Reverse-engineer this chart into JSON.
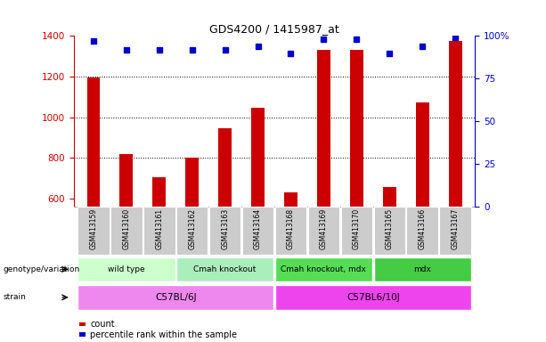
{
  "title": "GDS4200 / 1415987_at",
  "samples": [
    "GSM413159",
    "GSM413160",
    "GSM413161",
    "GSM413162",
    "GSM413163",
    "GSM413164",
    "GSM413168",
    "GSM413169",
    "GSM413170",
    "GSM413165",
    "GSM413166",
    "GSM413167"
  ],
  "counts": [
    1197,
    820,
    706,
    800,
    946,
    1046,
    630,
    1330,
    1330,
    657,
    1074,
    1375
  ],
  "percentiles": [
    97,
    92,
    92,
    92,
    92,
    94,
    90,
    98,
    98,
    90,
    94,
    99
  ],
  "ylim_left": [
    560,
    1400
  ],
  "ylim_right": [
    0,
    100
  ],
  "yticks_left": [
    600,
    800,
    1000,
    1200,
    1400
  ],
  "yticks_right": [
    0,
    25,
    50,
    75,
    100
  ],
  "grid_values": [
    800,
    1000,
    1200
  ],
  "genotype_groups": [
    {
      "label": "wild type",
      "start": 0,
      "end": 2,
      "color": "#ccffcc"
    },
    {
      "label": "Cmah knockout",
      "start": 3,
      "end": 5,
      "color": "#aaeebb"
    },
    {
      "label": "Cmah knockout, mdx",
      "start": 6,
      "end": 8,
      "color": "#55dd55"
    },
    {
      "label": "mdx",
      "start": 9,
      "end": 11,
      "color": "#44cc44"
    }
  ],
  "strain_groups": [
    {
      "label": "C57BL/6J",
      "start": 0,
      "end": 5,
      "color": "#ee88ee"
    },
    {
      "label": "C57BL6/10J",
      "start": 6,
      "end": 11,
      "color": "#ee44ee"
    }
  ],
  "bar_color": "#cc0000",
  "dot_color": "#0000cc",
  "axis_left_color": "#cc0000",
  "axis_right_color": "#0000cc",
  "legend_count_color": "#cc0000",
  "legend_pct_color": "#0000cc",
  "tick_area_color": "#cccccc",
  "background_color": "#ffffff"
}
